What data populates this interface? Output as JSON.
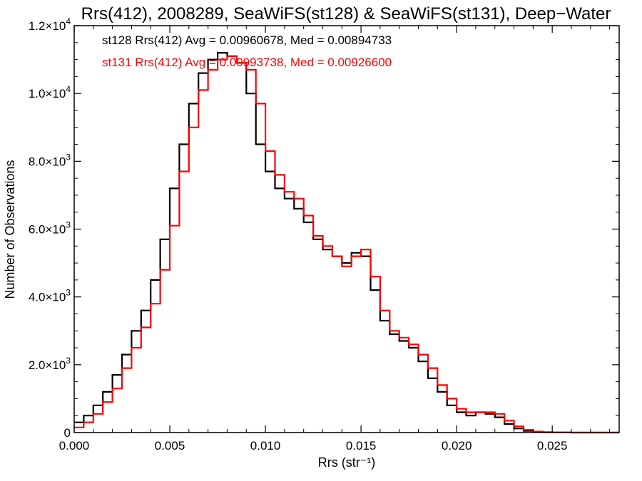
{
  "chart_data": {
    "type": "line",
    "title": "Rrs(412), 2008289, SeaWiFS(st128) & SeaWiFS(st131), Deep−Water",
    "xlabel": "Rrs (str⁻¹)",
    "ylabel": "Number of Observations",
    "xlim": [
      0.0,
      0.0285
    ],
    "ylim": [
      0,
      12000
    ],
    "x_ticks": [
      "0.000",
      "0.005",
      "0.010",
      "0.015",
      "0.020",
      "0.025"
    ],
    "x_tick_values": [
      0.0,
      0.005,
      0.01,
      0.015,
      0.02,
      0.025
    ],
    "y_ticks": [
      {
        "value": 0,
        "mantissa": "0",
        "exponent": ""
      },
      {
        "value": 2000,
        "mantissa": "2.0×10",
        "exponent": "3"
      },
      {
        "value": 4000,
        "mantissa": "4.0×10",
        "exponent": "3"
      },
      {
        "value": 6000,
        "mantissa": "6.0×10",
        "exponent": "3"
      },
      {
        "value": 8000,
        "mantissa": "8.0×10",
        "exponent": "3"
      },
      {
        "value": 10000,
        "mantissa": "1.0×10",
        "exponent": "4"
      },
      {
        "value": 12000,
        "mantissa": "1.2×10",
        "exponent": "4"
      }
    ],
    "grid": false,
    "legend_placement": "top-left",
    "annotations": [
      {
        "text": "st128 Rrs(412) Avg = 0.00960678, Med = 0.00894733",
        "color": "#000000"
      },
      {
        "text": "st131 Rrs(412) Avg = 0.00993738, Med = 0.00926600",
        "color": "#ff0000"
      }
    ],
    "series": [
      {
        "color": "#000000",
        "style": "step",
        "x": [
          0.0,
          0.0005,
          0.001,
          0.0015,
          0.002,
          0.0025,
          0.003,
          0.0035,
          0.004,
          0.0045,
          0.005,
          0.0055,
          0.006,
          0.0065,
          0.007,
          0.0075,
          0.008,
          0.0085,
          0.009,
          0.0095,
          0.01,
          0.0105,
          0.011,
          0.0115,
          0.012,
          0.0125,
          0.013,
          0.0135,
          0.014,
          0.0145,
          0.015,
          0.0155,
          0.016,
          0.0165,
          0.017,
          0.0175,
          0.018,
          0.0185,
          0.019,
          0.0195,
          0.02,
          0.0205,
          0.021,
          0.0215,
          0.022,
          0.0225,
          0.023,
          0.0235,
          0.024,
          0.0245,
          0.025,
          0.026,
          0.027,
          0.0285
        ],
        "y": [
          300,
          500,
          800,
          1200,
          1700,
          2300,
          3000,
          3600,
          4500,
          5700,
          7200,
          8500,
          9700,
          10600,
          11000,
          11200,
          11100,
          10900,
          10000,
          8500,
          7700,
          7200,
          6900,
          6600,
          6200,
          5700,
          5400,
          5200,
          5000,
          5300,
          5200,
          4200,
          3300,
          2900,
          2700,
          2500,
          2100,
          1600,
          1200,
          800,
          600,
          500,
          600,
          550,
          450,
          250,
          120,
          50,
          20,
          10,
          5,
          0,
          0,
          0
        ]
      },
      {
        "color": "#ff0000",
        "style": "step",
        "x": [
          0.0,
          0.0005,
          0.001,
          0.0015,
          0.002,
          0.0025,
          0.003,
          0.0035,
          0.004,
          0.0045,
          0.005,
          0.0055,
          0.006,
          0.0065,
          0.007,
          0.0075,
          0.008,
          0.0085,
          0.009,
          0.0095,
          0.01,
          0.0105,
          0.011,
          0.0115,
          0.012,
          0.0125,
          0.013,
          0.0135,
          0.014,
          0.0145,
          0.015,
          0.0155,
          0.016,
          0.0165,
          0.017,
          0.0175,
          0.018,
          0.0185,
          0.019,
          0.0195,
          0.02,
          0.0205,
          0.021,
          0.0215,
          0.022,
          0.0225,
          0.023,
          0.0235,
          0.024,
          0.0245,
          0.025,
          0.026,
          0.027,
          0.0285
        ],
        "y": [
          150,
          300,
          550,
          900,
          1300,
          1900,
          2500,
          3100,
          3800,
          4800,
          6100,
          7700,
          9000,
          10100,
          10700,
          11000,
          11100,
          10900,
          10700,
          9700,
          8300,
          7600,
          7100,
          6900,
          6400,
          5800,
          5500,
          5200,
          4900,
          5200,
          5400,
          4600,
          3600,
          3000,
          2800,
          2600,
          2300,
          1900,
          1400,
          1000,
          700,
          600,
          600,
          600,
          550,
          350,
          180,
          80,
          30,
          10,
          5,
          0,
          0,
          0
        ]
      }
    ]
  }
}
